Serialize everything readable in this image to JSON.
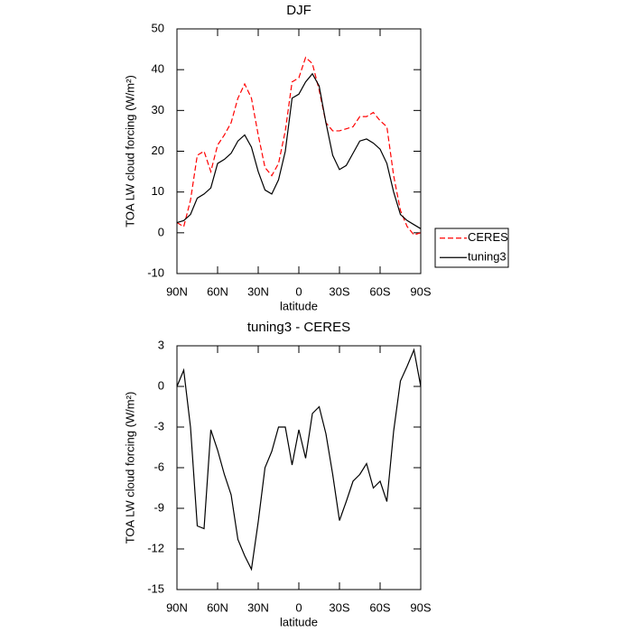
{
  "chart_data": [
    {
      "type": "line",
      "title": "DJF",
      "xlabel": "latitude",
      "ylabel": "TOA LW cloud forcing (W/m²)",
      "x": [
        90,
        85,
        80,
        75,
        70,
        65,
        60,
        55,
        50,
        45,
        40,
        35,
        30,
        25,
        20,
        15,
        10,
        5,
        0,
        -5,
        -10,
        -15,
        -20,
        -25,
        -30,
        -35,
        -40,
        -45,
        -50,
        -55,
        -60,
        -65,
        -70,
        -75,
        -80,
        -85,
        -90
      ],
      "series": [
        {
          "name": "CERES",
          "color": "#ff0000",
          "dashed": true,
          "values": [
            2.5,
            1.5,
            8,
            19,
            20,
            15,
            21.5,
            24,
            27,
            33,
            36.5,
            33,
            24,
            16,
            14,
            17,
            25,
            37,
            38,
            43,
            41.5,
            35,
            27,
            25,
            25,
            25.5,
            26,
            28.5,
            28.5,
            29.5,
            27.5,
            26,
            14,
            5.5,
            1.5,
            -0.5,
            0
          ]
        },
        {
          "name": "tuning3",
          "color": "#000000",
          "dashed": false,
          "values": [
            2.5,
            3,
            4.5,
            8.5,
            9.5,
            11,
            17,
            18,
            19.5,
            22.5,
            24,
            21,
            15,
            10.5,
            9.5,
            13,
            20,
            33,
            34,
            37,
            39,
            36,
            27,
            19,
            15.5,
            16.5,
            19.5,
            22.5,
            23,
            22,
            20.5,
            17,
            10,
            4.5,
            3,
            2,
            1
          ]
        }
      ],
      "xlim": [
        90,
        -90
      ],
      "xticks": [
        {
          "value": 90,
          "label": "90N"
        },
        {
          "value": 60,
          "label": "60N"
        },
        {
          "value": 30,
          "label": "30N"
        },
        0,
        {
          "value": -30,
          "label": "30S"
        },
        {
          "value": -60,
          "label": "60S"
        },
        {
          "value": -90,
          "label": "90S"
        }
      ],
      "ylim": [
        -10,
        50
      ],
      "yticks": [
        -10,
        0,
        10,
        20,
        30,
        40,
        50
      ],
      "legend": "right"
    },
    {
      "type": "line",
      "title": "tuning3 - CERES",
      "xlabel": "latitude",
      "ylabel": "TOA LW cloud forcing (W/m²)",
      "x": [
        90,
        85,
        80,
        75,
        70,
        65,
        60,
        55,
        50,
        45,
        40,
        35,
        30,
        25,
        20,
        15,
        10,
        5,
        0,
        -5,
        -10,
        -15,
        -20,
        -25,
        -30,
        -35,
        -40,
        -45,
        -50,
        -55,
        -60,
        -65,
        -70,
        -75,
        -80,
        -85,
        -90
      ],
      "series": [
        {
          "color": "#000000",
          "dashed": false,
          "values": [
            0,
            1.2,
            -3,
            -10.3,
            -10.5,
            -3.2,
            -4.7,
            -6.5,
            -8,
            -11.3,
            -12.5,
            -13.5,
            -10,
            -6,
            -4.8,
            -3,
            -3,
            -5.8,
            -3.2,
            -5.3,
            -2,
            -1.5,
            -3.5,
            -6.5,
            -9.9,
            -8.5,
            -7,
            -6.5,
            -5.7,
            -7.5,
            -7,
            -8.5,
            -3.3,
            0.4,
            1.5,
            2.7,
            0
          ]
        }
      ],
      "xlim": [
        90,
        -90
      ],
      "xticks": [
        {
          "value": 90,
          "label": "90N"
        },
        {
          "value": 60,
          "label": "60N"
        },
        {
          "value": 30,
          "label": "30N"
        },
        0,
        {
          "value": -30,
          "label": "30S"
        },
        {
          "value": -60,
          "label": "60S"
        },
        {
          "value": -90,
          "label": "90S"
        }
      ],
      "ylim": [
        -15,
        3
      ],
      "yticks": [
        -15,
        -12,
        -9,
        -6,
        -3,
        0,
        3
      ]
    }
  ]
}
